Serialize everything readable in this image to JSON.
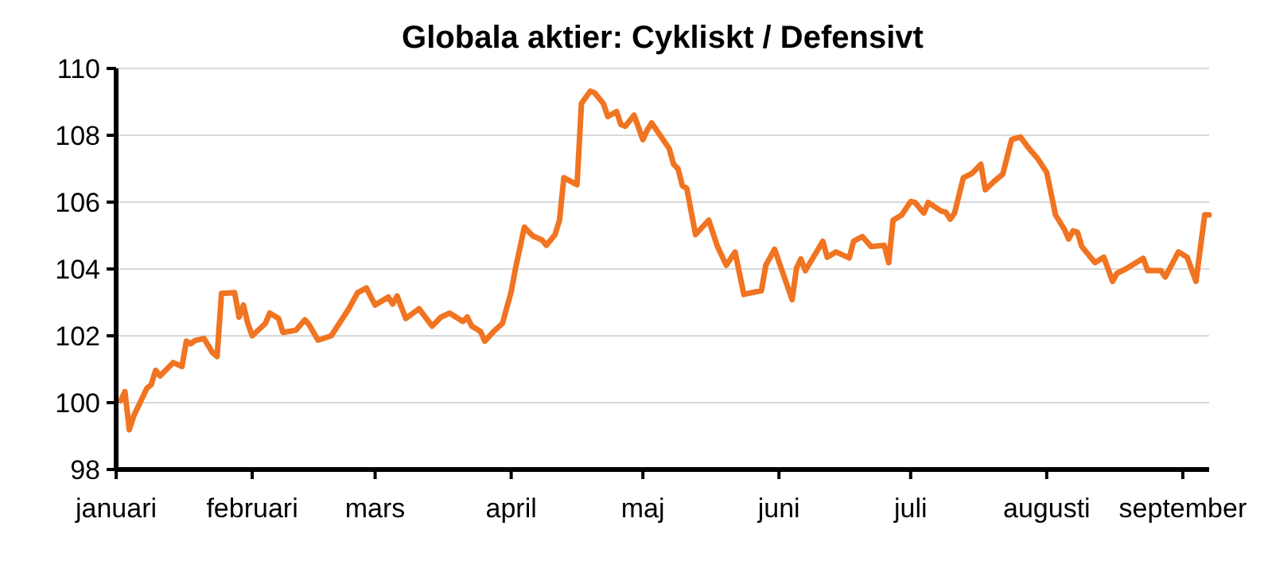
{
  "chart_data": {
    "type": "line",
    "title": "Globala aktier: Cykliskt / Defensivt",
    "x": [
      "--01-02",
      "--01-03",
      "--01-04",
      "--01-05",
      "--01-08",
      "--01-09",
      "--01-10",
      "--01-11",
      "--01-14",
      "--01-16",
      "--01-17",
      "--01-18",
      "--01-19",
      "--01-21",
      "--01-23",
      "--01-24",
      "--01-25",
      "--01-28",
      "--01-29",
      "--01-30",
      "--01-31",
      "--02-01",
      "--02-04",
      "--02-05",
      "--02-07",
      "--02-08",
      "--02-11",
      "--02-13",
      "--02-14",
      "--02-16",
      "--02-19",
      "--02-23",
      "--02-25",
      "--02-27",
      "--03-01",
      "--03-04",
      "--03-05",
      "--03-06",
      "--03-08",
      "--03-11",
      "--03-14",
      "--03-16",
      "--03-18",
      "--03-21",
      "--03-22",
      "--03-23",
      "--03-25",
      "--03-26",
      "--03-28",
      "--03-30",
      "--04-01",
      "--04-02",
      "--04-04",
      "--04-06",
      "--04-08",
      "--04-09",
      "--04-11",
      "--04-12",
      "--04-13",
      "--04-16",
      "--04-17",
      "--04-19",
      "--04-20",
      "--04-22",
      "--04-23",
      "--04-25",
      "--04-26",
      "--04-27",
      "--04-29",
      "--05-01",
      "--05-02",
      "--05-03",
      "--05-07",
      "--05-08",
      "--05-09",
      "--05-10",
      "--05-11",
      "--05-13",
      "--05-16",
      "--05-18",
      "--05-20",
      "--05-22",
      "--05-24",
      "--05-28",
      "--05-29",
      "--05-31",
      "--06-04",
      "--06-05",
      "--06-06",
      "--06-07",
      "--06-11",
      "--06-12",
      "--06-14",
      "--06-17",
      "--06-18",
      "--06-20",
      "--06-22",
      "--06-25",
      "--06-26",
      "--06-27",
      "--06-29",
      "--07-01",
      "--07-02",
      "--07-04",
      "--07-05",
      "--07-08",
      "--07-09",
      "--07-10",
      "--07-11",
      "--07-13",
      "--07-15",
      "--07-17",
      "--07-18",
      "--07-20",
      "--07-22",
      "--07-24",
      "--07-26",
      "--07-28",
      "--07-30",
      "--08-01",
      "--08-03",
      "--08-05",
      "--08-06",
      "--08-07",
      "--08-08",
      "--08-09",
      "--08-12",
      "--08-14",
      "--08-16",
      "--08-17",
      "--08-19",
      "--08-21",
      "--08-23",
      "--08-24",
      "--08-27",
      "--08-28",
      "--08-31",
      "--09-02",
      "--09-04",
      "--09-06",
      "--09-07"
    ],
    "series": [
      {
        "color": "#f07421",
        "values": [
          100.06,
          100.33,
          99.19,
          99.6,
          100.43,
          100.54,
          100.97,
          100.8,
          101.2,
          101.08,
          101.84,
          101.76,
          101.86,
          101.92,
          101.49,
          101.38,
          103.27,
          103.29,
          102.56,
          102.92,
          102.37,
          102.0,
          102.37,
          102.68,
          102.52,
          102.1,
          102.17,
          102.48,
          102.32,
          101.87,
          102.0,
          102.81,
          103.29,
          103.43,
          102.92,
          103.16,
          102.95,
          103.19,
          102.52,
          102.81,
          102.29,
          102.56,
          102.68,
          102.43,
          102.56,
          102.29,
          102.13,
          101.84,
          102.13,
          102.37,
          103.32,
          104.03,
          105.25,
          104.98,
          104.87,
          104.71,
          105.03,
          105.46,
          106.73,
          106.52,
          108.95,
          109.32,
          109.27,
          108.95,
          108.56,
          108.71,
          108.32,
          108.27,
          108.6,
          107.87,
          108.16,
          108.37,
          107.6,
          107.13,
          107.0,
          106.49,
          106.41,
          105.03,
          105.46,
          104.67,
          104.11,
          104.51,
          103.24,
          103.35,
          104.11,
          104.59,
          103.08,
          104.03,
          104.3,
          103.95,
          104.83,
          104.35,
          104.51,
          104.33,
          104.83,
          104.97,
          104.67,
          104.71,
          104.19,
          105.46,
          105.62,
          106.02,
          105.99,
          105.67,
          105.99,
          105.73,
          105.7,
          105.49,
          105.67,
          106.73,
          106.86,
          107.13,
          106.37,
          106.62,
          106.84,
          107.87,
          107.95,
          107.6,
          107.29,
          106.89,
          105.62,
          105.19,
          104.9,
          105.14,
          105.1,
          104.67,
          104.19,
          104.35,
          103.63,
          103.87,
          104.0,
          104.16,
          104.32,
          103.95,
          103.95,
          103.76,
          104.51,
          104.35,
          103.63,
          105.62,
          105.62
        ]
      }
    ],
    "xlim": [
      "--01-01",
      "--09-07"
    ],
    "xticks": [
      {
        "value": "--01-01",
        "label": "januari"
      },
      {
        "value": "--02-01",
        "label": "februari"
      },
      {
        "value": "--03-01",
        "label": "mars"
      },
      {
        "value": "--04-01",
        "label": "april"
      },
      {
        "value": "--05-01",
        "label": "maj"
      },
      {
        "value": "--06-01",
        "label": "juni"
      },
      {
        "value": "--07-01",
        "label": "juli"
      },
      {
        "value": "--08-01",
        "label": "augusti"
      },
      {
        "value": "--09-01",
        "label": "september"
      }
    ],
    "ylim": [
      98,
      110
    ],
    "yticks": [
      98,
      100,
      102,
      104,
      106,
      108,
      110
    ],
    "grid": "y",
    "marker": "none",
    "line_style": "solid"
  }
}
